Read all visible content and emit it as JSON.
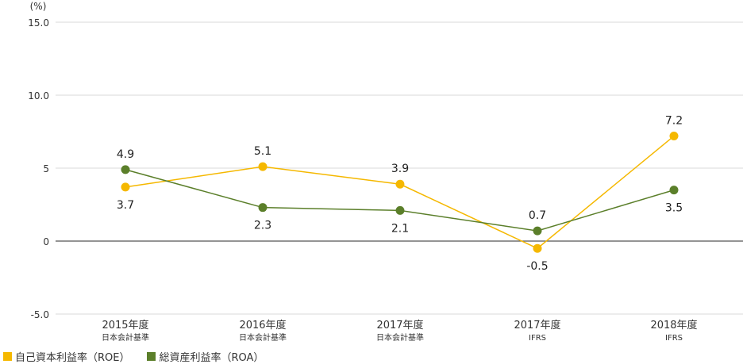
{
  "chart_data": {
    "type": "line",
    "unit_label": "(%)",
    "y_ticks": [
      "15.0",
      "10.0",
      "5",
      "0",
      "-5.0"
    ],
    "y_tick_values": [
      15,
      10,
      5,
      0,
      -5
    ],
    "ylim": [
      -5,
      15
    ],
    "categories": [
      {
        "year": "2015年度",
        "standard": "日本会計基準"
      },
      {
        "year": "2016年度",
        "standard": "日本会計基準"
      },
      {
        "year": "2017年度",
        "standard": "日本会計基準"
      },
      {
        "year": "2017年度",
        "standard": "IFRS"
      },
      {
        "year": "2018年度",
        "standard": "IFRS"
      }
    ],
    "series": [
      {
        "name": "自己資本利益率（ROE）",
        "color": "#f5b800",
        "values": [
          3.7,
          5.1,
          3.9,
          -0.5,
          7.2
        ],
        "labels": [
          "3.7",
          "5.1",
          "3.9",
          "-0.5",
          "7.2"
        ],
        "label_pos": [
          "below",
          "above",
          "above",
          "below",
          "above"
        ]
      },
      {
        "name": "総資産利益率（ROA）",
        "color": "#5b7f2a",
        "values": [
          4.9,
          2.3,
          2.1,
          0.7,
          3.5
        ],
        "labels": [
          "4.9",
          "2.3",
          "2.1",
          "0.7",
          "3.5"
        ],
        "label_pos": [
          "above",
          "below",
          "below",
          "above",
          "below"
        ]
      }
    ],
    "grid": true,
    "legend_position": "bottom-left"
  }
}
